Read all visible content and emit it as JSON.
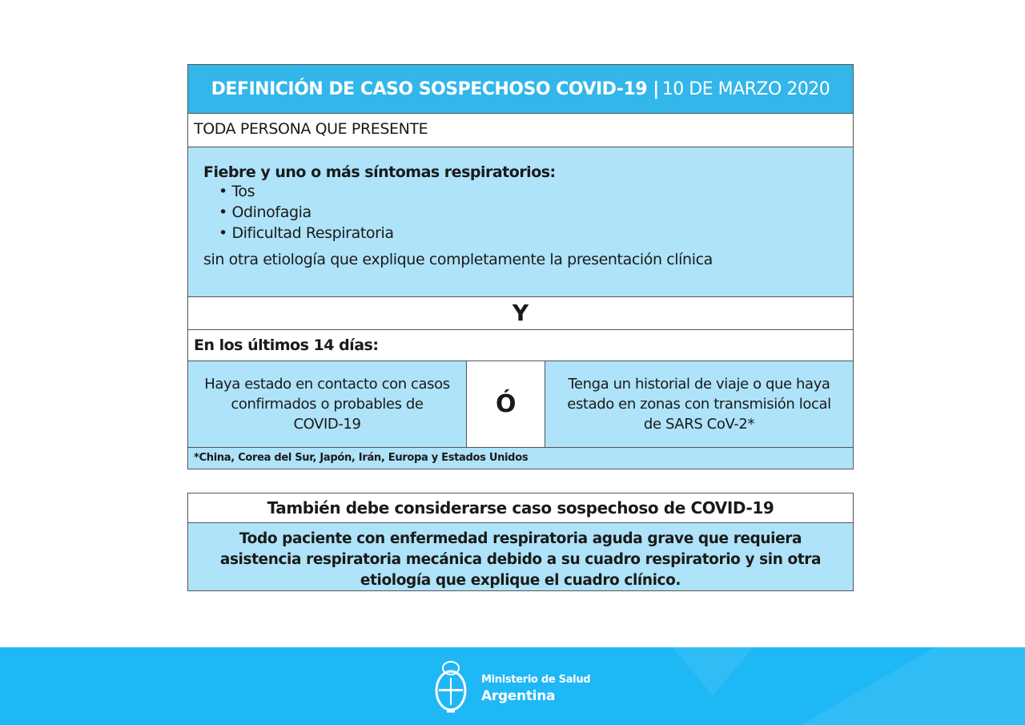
{
  "main": {
    "title_bold": "DEFINICIÓN DE CASO SOSPECHOSO COVID-19 |",
    "title_date": "10 DE MARZO 2020",
    "intro": "TODA PERSONA QUE PRESENTE",
    "symptoms_heading": "Fiebre y uno o más síntomas respiratorios:",
    "symptoms": [
      "• Tos",
      "• Odinofagia",
      "• Dificultad Respiratoria"
    ],
    "etiology": "sin otra etiología que explique completamente la presentación clínica",
    "and_label": "Y",
    "period": "En los últimos 14 días:",
    "option_a": "Haya estado en contacto con casos confirmados o probables de COVID-19",
    "or_label": "Ó",
    "option_b": "Tenga un historial de viaje o que haya estado en zonas con transmisión local de SARS CoV-2*",
    "footnote": "*China, Corea del Sur, Japón, Irán, Europa y Estados Unidos"
  },
  "secondary": {
    "title": "También debe considerarse caso sospechoso de COVID-19",
    "body": "Todo paciente con enfermedad respiratoria aguda grave que requiera asistencia respiratoria mecánica debido a su cuadro respiratorio y sin otra etiología que explique el cuadro clínico."
  },
  "footer": {
    "line1": "Ministerio de Salud",
    "line2": "Argentina",
    "logo": "escudo-argentina-icon"
  },
  "colors": {
    "header": "#33b6ea",
    "light": "#aee3f9",
    "footer": "#1fb8f6"
  }
}
